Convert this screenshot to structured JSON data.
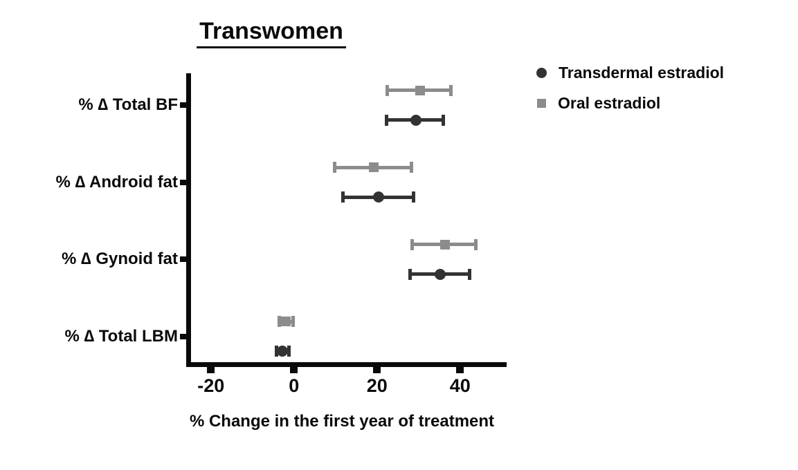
{
  "chart_data": {
    "type": "scatter",
    "subtype": "horizontal dot plot with error bars (forest-style)",
    "title": "Transwomen",
    "xlabel": "% Change in the first year of treatment",
    "ylabel": "",
    "categories": [
      "% ∆ Total BF",
      "% ∆ Android fat",
      "% ∆ Gynoid fat",
      "% ∆ Total LBM"
    ],
    "x_ticks": [
      -20,
      0,
      20,
      40
    ],
    "xlim": [
      -25,
      51
    ],
    "grid": false,
    "legend_position": "top-right",
    "axis_color": "#0a0a0a",
    "series": [
      {
        "name": "Transdermal estradiol",
        "marker": "circle",
        "color": "#333333",
        "points": [
          {
            "category": "% ∆ Total BF",
            "value": 29.3,
            "lo": 22.3,
            "hi": 36.0
          },
          {
            "category": "% ∆ Android fat",
            "value": 20.3,
            "lo": 11.7,
            "hi": 28.8
          },
          {
            "category": "% ∆ Gynoid fat",
            "value": 35.2,
            "lo": 28.0,
            "hi": 42.2
          },
          {
            "category": "% ∆ Total LBM",
            "value": -2.8,
            "lo": -4.3,
            "hi": -1.2
          }
        ]
      },
      {
        "name": "Oral estradiol",
        "marker": "square",
        "color": "#8c8c8c",
        "points": [
          {
            "category": "% ∆ Total BF",
            "value": 30.3,
            "lo": 22.5,
            "hi": 37.7
          },
          {
            "category": "% ∆ Android fat",
            "value": 19.2,
            "lo": 9.8,
            "hi": 28.3
          },
          {
            "category": "% ∆ Gynoid fat",
            "value": 36.3,
            "lo": 28.5,
            "hi": 43.8
          },
          {
            "category": "% ∆ Total LBM",
            "value": -1.9,
            "lo": -3.5,
            "hi": -0.3
          }
        ]
      }
    ]
  }
}
